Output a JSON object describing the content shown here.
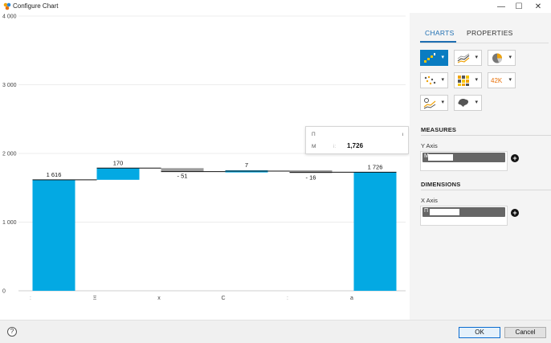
{
  "window": {
    "title": "Configure Chart",
    "minimize_glyph": "—",
    "maximize_glyph": "☐",
    "close_glyph": "✕"
  },
  "chart_data": {
    "type": "waterfall",
    "y_ticks": [
      0,
      1000,
      2000,
      3000,
      4000
    ],
    "y_tick_labels": [
      "0",
      "1 000",
      "2 000",
      "3 000",
      "4 000"
    ],
    "ylim": [
      0,
      4000
    ],
    "grid": true,
    "categories": [
      "ː",
      "Ξ",
      "x",
      "C",
      "ː",
      "a"
    ],
    "values": [
      1616,
      170,
      -51,
      7,
      -16,
      1726
    ],
    "value_labels": [
      "1 616",
      "170",
      "- 51",
      "7",
      "- 16",
      "1 726"
    ],
    "kinds": [
      "total",
      "delta",
      "delta",
      "delta",
      "delta",
      "total"
    ],
    "colors": {
      "total": "#03a9e3",
      "increase": "#03a9e3",
      "decrease": "#9d9d9d",
      "connector": "#111111"
    }
  },
  "tooltip": {
    "row1_label": "П",
    "row1_end": "ι",
    "row2_label": "M",
    "row2_mid": "i:",
    "value": "1,726"
  },
  "panel": {
    "tabs": {
      "charts": "CHARTS",
      "properties": "PROPERTIES"
    },
    "chart_types": [
      {
        "icon": "waterfall-chart-icon",
        "selected": true
      },
      {
        "icon": "line-chart-icon",
        "selected": false
      },
      {
        "icon": "pie-chart-icon",
        "selected": false
      },
      {
        "icon": "scatter-chart-icon",
        "selected": false
      },
      {
        "icon": "heatmap-chart-icon",
        "selected": false
      },
      {
        "icon": "numeric-point-icon",
        "selected": false
      },
      {
        "icon": "trend-chart-icon",
        "selected": false
      },
      {
        "icon": "geo-map-icon",
        "selected": false
      }
    ],
    "numeric_point_label": "42K",
    "chevron": "▾",
    "measures": {
      "title": "MEASURES",
      "axis_label": "Y Axis",
      "field_char": "M"
    },
    "dimensions": {
      "title": "DIMENSIONS",
      "axis_label": "X Axis",
      "field_char": "П"
    },
    "add_glyph": "+"
  },
  "footer": {
    "help_glyph": "?",
    "ok_label": "OK",
    "cancel_label": "Cancel"
  }
}
